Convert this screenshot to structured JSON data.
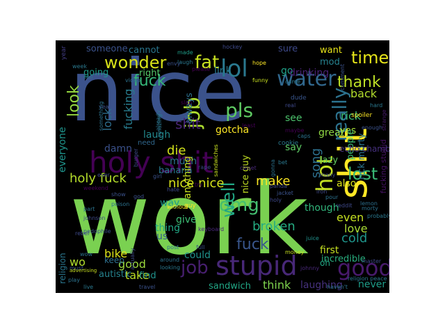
{
  "palette": {
    "background": "#000000",
    "purple": "#440154",
    "indigo": "#3b528b",
    "teal": "#21918c",
    "green": "#5ec962",
    "yellow": "#fde725",
    "deep_purple": "#482878",
    "blue_teal": "#2c728e",
    "sea_green": "#28ae80",
    "lime": "#addc30"
  },
  "words": [
    {
      "text": "nice",
      "color": "#3b528b"
    },
    {
      "text": "work",
      "color": "#7ad151"
    },
    {
      "text": "holy shit",
      "color": "#440154"
    },
    {
      "text": "shit",
      "color": "#fde725"
    },
    {
      "text": "hot",
      "color": "#c2df23"
    },
    {
      "text": "really",
      "color": "#2c728e"
    },
    {
      "text": "job",
      "color": "#addc30"
    },
    {
      "text": "stupid",
      "color": "#482878"
    },
    {
      "text": "good",
      "color": "#481a6c"
    },
    {
      "text": "lol",
      "color": "#2a788e"
    },
    {
      "text": "water",
      "color": "#31688e"
    },
    {
      "text": "fat",
      "color": "#c8e020"
    },
    {
      "text": "wonder",
      "color": "#d8e219"
    },
    {
      "text": "time",
      "color": "#e5e419"
    },
    {
      "text": "pls",
      "color": "#5ec962"
    },
    {
      "text": "thank",
      "color": "#bddf26"
    },
    {
      "text": "look",
      "color": "#95d840"
    },
    {
      "text": "fuck",
      "color": "#35b779"
    },
    {
      "text": "fucking",
      "color": "#287c8e"
    },
    {
      "text": "lost",
      "color": "#3aba76"
    },
    {
      "text": "song",
      "color": "#2d708e"
    },
    {
      "text": "omg",
      "color": "#44bf70"
    },
    {
      "text": "well",
      "color": "#22a884"
    },
    {
      "text": "nice nice",
      "color": "#d5e21a"
    },
    {
      "text": "holy fuck",
      "color": "#b5de2b"
    },
    {
      "text": "make",
      "color": "#fbe723"
    },
    {
      "text": "fuck",
      "color": "#39568c"
    },
    {
      "text": "broken",
      "color": "#25ac82"
    },
    {
      "text": "love",
      "color": "#a8db34"
    },
    {
      "text": "cold",
      "color": "#1f958b"
    },
    {
      "text": "even",
      "color": "#c5e021"
    },
    {
      "text": "job",
      "color": "#481f70"
    },
    {
      "text": "incredible",
      "color": "#29af7f"
    },
    {
      "text": "never",
      "color": "#1e9d89"
    },
    {
      "text": "laughing",
      "color": "#46317e"
    },
    {
      "text": "think",
      "color": "#7fd34e"
    },
    {
      "text": "sandwich",
      "color": "#21a685"
    },
    {
      "text": "bike",
      "color": "#dde318"
    },
    {
      "text": "take",
      "color": "#c0df25"
    },
    {
      "text": "good",
      "color": "#9bd93c"
    },
    {
      "text": "find",
      "color": "#20928c"
    },
    {
      "text": "autistic",
      "color": "#26828e"
    },
    {
      "text": "keep",
      "color": "#2e6f8e"
    },
    {
      "text": "lock",
      "color": "#2e6e8e"
    },
    {
      "text": "laugh",
      "color": "#23898e"
    },
    {
      "text": "die",
      "color": "#d2e21b"
    },
    {
      "text": "shit",
      "color": "#482576"
    },
    {
      "text": "damn",
      "color": "#3b518b"
    },
    {
      "text": "much",
      "color": "#2d718e"
    },
    {
      "text": "banana",
      "color": "#2a788e"
    },
    {
      "text": "everyone",
      "color": "#1f948c"
    },
    {
      "text": "say",
      "color": "#5cc863"
    },
    {
      "text": "see",
      "color": "#4cc26c"
    },
    {
      "text": "gotcha",
      "color": "#fde725"
    },
    {
      "text": "link",
      "color": "#29798e"
    },
    {
      "text": "go",
      "color": "#1fa188"
    },
    {
      "text": "drinking",
      "color": "#482173"
    },
    {
      "text": "mod",
      "color": "#26828e"
    },
    {
      "text": "back",
      "color": "#b2dd2d"
    },
    {
      "text": "rick",
      "color": "#3bbb75"
    },
    {
      "text": "rick morty",
      "color": "#2c738e"
    },
    {
      "text": "great",
      "color": "#90d743"
    },
    {
      "text": "lazy",
      "color": "#63cb5f"
    },
    {
      "text": "also",
      "color": "#dae319"
    },
    {
      "text": "yes",
      "color": "#a5db36"
    },
    {
      "text": "though",
      "color": "#31b57b"
    },
    {
      "text": "could",
      "color": "#20928c"
    },
    {
      "text": "give",
      "color": "#3dbc74"
    },
    {
      "text": "way",
      "color": "#1e9b8a"
    },
    {
      "text": "thing",
      "color": "#22a785"
    },
    {
      "text": "us",
      "color": "#365c8d"
    },
    {
      "text": "wo",
      "color": "#b2dd2d"
    },
    {
      "text": "want",
      "color": "#e7e419"
    },
    {
      "text": "sure",
      "color": "#3e4989"
    },
    {
      "text": "someone",
      "color": "#3b528b"
    },
    {
      "text": "cannot",
      "color": "#2a768e"
    },
    {
      "text": "going",
      "color": "#1f998a"
    },
    {
      "text": "right",
      "color": "#54c568"
    },
    {
      "text": "always",
      "color": "#2d708e"
    },
    {
      "text": "anything",
      "color": "#c8e020"
    },
    {
      "text": "nice guy",
      "color": "#c2df23"
    },
    {
      "text": "first",
      "color": "#c5e021"
    },
    {
      "text": "oh",
      "color": "#22a884"
    },
    {
      "text": "people",
      "color": "#3dbc74"
    },
    {
      "text": "echo chamber",
      "color": "#46307e"
    },
    {
      "text": "fucking stupid",
      "color": "#471365"
    },
    {
      "text": "religion",
      "color": "#2a768e"
    },
    {
      "text": "year",
      "color": "#433e85"
    },
    {
      "text": "made",
      "color": "#1f9e89"
    },
    {
      "text": "laugh",
      "color": "#2a788e"
    },
    {
      "text": "envy",
      "color": "#3b528b"
    },
    {
      "text": "please",
      "color": "#440154"
    },
    {
      "text": "hope",
      "color": "#fde725"
    },
    {
      "text": "video",
      "color": "#2c728e"
    },
    {
      "text": "need",
      "color": "#31688e"
    },
    {
      "text": "dude",
      "color": "#39568c"
    },
    {
      "text": "cookie",
      "color": "#2a788e"
    },
    {
      "text": "maybe",
      "color": "#440154"
    },
    {
      "text": "iron",
      "color": "#3e4989"
    },
    {
      "text": "lemon",
      "color": "#2d708e"
    },
    {
      "text": "pour",
      "color": "#2c728e"
    },
    {
      "text": "juice",
      "color": "#21918c"
    },
    {
      "text": "reddit",
      "color": "#3e4989"
    },
    {
      "text": "guy",
      "color": "#fde725"
    },
    {
      "text": "keyboard",
      "color": "#482878"
    },
    {
      "text": "rebel",
      "color": "#3e4989"
    },
    {
      "text": "wow",
      "color": "#2c728e"
    },
    {
      "text": "money",
      "color": "#c8e020"
    },
    {
      "text": "strange",
      "color": "#481a6c"
    },
    {
      "text": "master",
      "color": "#3e4989"
    },
    {
      "text": "comment",
      "color": "#3b528b"
    },
    {
      "text": "spoiler",
      "color": "#fde725"
    },
    {
      "text": "caps",
      "color": "#2c728e"
    },
    {
      "text": "hard",
      "color": "#2a788e"
    },
    {
      "text": "least",
      "color": "#440154"
    },
    {
      "text": "slap",
      "color": "#440154"
    },
    {
      "text": "already",
      "color": "#2c728e"
    },
    {
      "text": "funny",
      "color": "#c8e020"
    },
    {
      "text": "panda",
      "color": "#3e4989"
    },
    {
      "text": "weekend",
      "color": "#440154"
    },
    {
      "text": "god",
      "color": "#3b528b"
    },
    {
      "text": "poison",
      "color": "#2c728e"
    },
    {
      "text": "johnny",
      "color": "#482878"
    },
    {
      "text": "holy",
      "color": "#3e4989"
    },
    {
      "text": "jacket",
      "color": "#3b528b"
    },
    {
      "text": "gonna",
      "color": "#2c728e"
    },
    {
      "text": "closet",
      "color": "#482878"
    },
    {
      "text": "rape",
      "color": "#3e4989"
    },
    {
      "text": "probably",
      "color": "#2a788e"
    },
    {
      "text": "must",
      "color": "#3b528b"
    },
    {
      "text": "call",
      "color": "#2c728e"
    },
    {
      "text": "week",
      "color": "#2a788e"
    },
    {
      "text": "yeah",
      "color": "#3b528b"
    },
    {
      "text": "something",
      "color": "#2c728e"
    },
    {
      "text": "hate",
      "color": "#3e4989"
    },
    {
      "text": "around",
      "color": "#2c728e"
    },
    {
      "text": "looking",
      "color": "#2a788e"
    },
    {
      "text": "actually",
      "color": "#3e4989"
    },
    {
      "text": "full",
      "color": "#3b528b"
    },
    {
      "text": "bet",
      "color": "#2a788e"
    },
    {
      "text": "many",
      "color": "#3e4989"
    },
    {
      "text": "burger",
      "color": "#3e4989"
    },
    {
      "text": "sandwiches",
      "color": "#c8e020"
    },
    {
      "text": "amazing",
      "color": "#2a788e"
    },
    {
      "text": "girl",
      "color": "#3b528b"
    },
    {
      "text": "advertising",
      "color": "#c8e020"
    },
    {
      "text": "post",
      "color": "#2c728e"
    },
    {
      "text": "pedophile",
      "color": "#3b528b"
    },
    {
      "text": "johnson",
      "color": "#3e4989"
    },
    {
      "text": "part",
      "color": "#2c728e"
    },
    {
      "text": "show",
      "color": "#3b528b"
    },
    {
      "text": "try",
      "color": "#440154"
    },
    {
      "text": "real",
      "color": "#3e4989"
    },
    {
      "text": "without",
      "color": "#fde725"
    },
    {
      "text": "religion peace",
      "color": "#2a788e"
    },
    {
      "text": "haven't",
      "color": "#2c728e"
    },
    {
      "text": "travel",
      "color": "#3b528b"
    },
    {
      "text": "live",
      "color": "#2a788e"
    },
    {
      "text": "play",
      "color": "#2c728e"
    },
    {
      "text": "hockey",
      "color": "#3e4989"
    },
    {
      "text": "enough",
      "color": "#3b528b"
    },
    {
      "text": "morty",
      "color": "#2c728e"
    },
    {
      "text": "came",
      "color": "#2a788e"
    },
    {
      "text": "ever",
      "color": "#3e4989"
    }
  ]
}
